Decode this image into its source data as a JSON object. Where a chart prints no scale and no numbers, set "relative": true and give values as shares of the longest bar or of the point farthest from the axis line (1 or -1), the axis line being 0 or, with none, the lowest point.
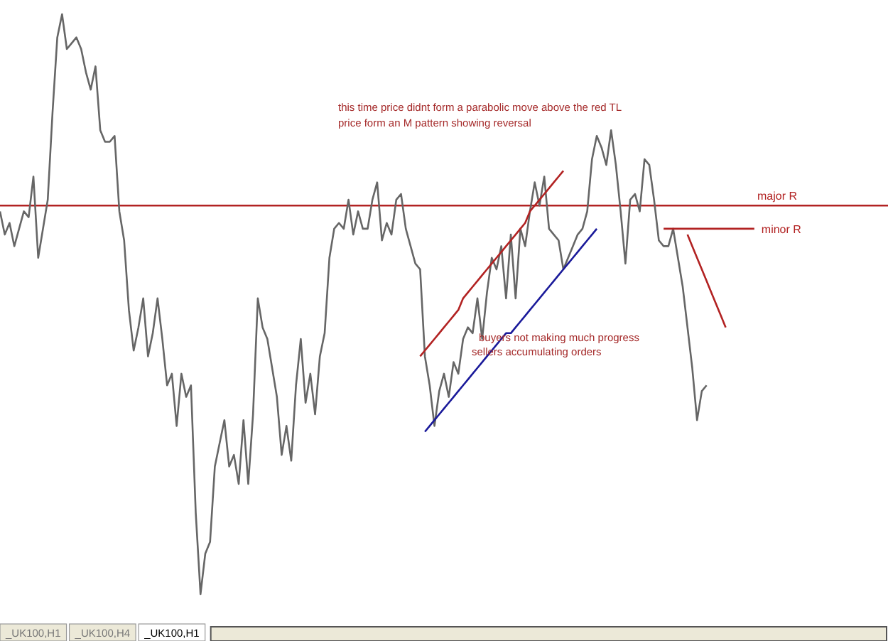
{
  "chart_data": {
    "type": "line",
    "relative": true,
    "tick_labels": false,
    "marker": "none",
    "line_style": "solid",
    "categories": [
      null,
      null,
      null,
      null,
      null,
      null,
      null,
      null,
      null,
      null,
      null,
      null,
      null,
      null,
      null,
      null,
      null,
      null,
      null,
      null,
      null,
      null,
      null,
      null,
      null,
      null,
      null,
      null,
      null,
      null,
      null,
      null,
      null,
      null,
      null,
      null,
      null,
      null,
      null,
      null,
      null,
      null,
      null,
      null,
      null,
      null,
      null,
      null,
      null,
      null,
      null,
      null,
      null,
      null,
      null,
      null,
      null,
      null,
      null,
      null,
      null,
      null,
      null,
      null,
      null,
      null,
      null,
      null,
      null,
      null,
      null,
      null,
      null,
      null,
      null,
      null,
      null,
      null,
      null,
      null,
      null,
      null,
      null,
      null,
      null,
      null,
      null,
      null,
      null,
      null,
      null,
      null,
      null,
      null,
      null,
      null,
      null,
      null,
      null,
      null,
      null,
      null,
      null,
      null,
      null,
      null,
      null,
      null,
      null,
      null,
      null,
      null,
      null,
      null,
      null,
      null,
      null,
      null,
      null,
      null,
      null,
      null,
      null,
      null,
      null,
      null,
      null,
      null,
      null,
      null,
      null,
      null,
      null,
      null,
      null,
      null,
      null,
      null,
      null,
      null,
      null,
      null,
      null,
      null,
      null,
      null,
      null,
      null,
      null,
      null,
      null,
      null,
      null,
      null,
      null,
      null,
      null,
      null,
      null,
      null,
      null,
      null,
      null,
      null,
      null,
      null,
      null,
      null,
      null,
      null,
      null,
      null,
      null,
      null,
      null,
      null,
      null,
      null,
      null,
      null,
      null,
      null,
      null,
      null,
      null,
      null,
      null
    ],
    "series": [
      {
        "color": "#666666",
        "values": [
          0.66,
          0.62,
          0.64,
          0.6,
          0.63,
          0.66,
          0.65,
          0.72,
          0.58,
          0.63,
          0.68,
          0.83,
          0.96,
          1,
          0.94,
          0.95,
          0.96,
          0.94,
          0.9,
          0.87,
          0.91,
          0.8,
          0.78,
          0.78,
          0.79,
          0.66,
          0.61,
          0.49,
          0.42,
          0.46,
          0.51,
          0.41,
          0.45,
          0.51,
          0.44,
          0.36,
          0.38,
          0.29,
          0.38,
          0.34,
          0.36,
          0.14,
          0,
          0.07,
          0.09,
          0.22,
          0.26,
          0.3,
          0.22,
          0.24,
          0.19,
          0.3,
          0.19,
          0.31,
          0.51,
          0.46,
          0.44,
          0.39,
          0.34,
          0.24,
          0.29,
          0.23,
          0.36,
          0.44,
          0.33,
          0.38,
          0.31,
          0.41,
          0.45,
          0.58,
          0.63,
          0.64,
          0.63,
          0.68,
          0.62,
          0.66,
          0.63,
          0.63,
          0.68,
          0.71,
          0.61,
          0.64,
          0.62,
          0.68,
          0.69,
          0.63,
          0.6,
          0.57,
          0.56,
          0.41,
          0.36,
          0.29,
          0.35,
          0.38,
          0.34,
          0.4,
          0.38,
          0.44,
          0.46,
          0.45,
          0.51,
          0.44,
          0.52,
          0.58,
          0.56,
          0.6,
          0.51,
          0.62,
          0.51,
          0.63,
          0.6,
          0.66,
          0.71,
          0.67,
          0.72,
          0.63,
          0.62,
          0.61,
          0.56,
          0.58,
          0.6,
          0.62,
          0.63,
          0.66,
          0.75,
          0.79,
          0.77,
          0.74,
          0.8,
          0.74,
          0.66,
          0.57,
          0.68,
          0.69,
          0.66,
          0.75,
          0.74,
          0.68,
          0.61,
          0.6,
          0.6,
          0.63,
          0.58,
          0.53,
          0.46,
          0.39,
          0.3,
          0.35,
          0.36,
          null,
          null,
          null,
          null,
          null,
          null,
          null,
          null,
          null,
          null,
          null,
          null,
          null,
          null,
          null,
          null,
          null,
          null,
          null,
          null,
          null,
          null,
          null,
          null,
          null,
          null,
          null,
          null,
          null,
          null,
          null,
          null,
          null,
          null,
          null,
          null,
          null,
          null
        ]
      },
      {
        "color": "#b22222",
        "values": [
          null,
          null,
          null,
          null,
          null,
          null,
          null,
          null,
          null,
          null,
          null,
          null,
          null,
          null,
          null,
          null,
          null,
          null,
          null,
          null,
          null,
          null,
          null,
          null,
          null,
          null,
          null,
          null,
          null,
          null,
          null,
          null,
          null,
          null,
          null,
          null,
          null,
          null,
          null,
          null,
          null,
          null,
          null,
          null,
          null,
          null,
          null,
          null,
          null,
          null,
          null,
          null,
          null,
          null,
          null,
          null,
          null,
          null,
          null,
          null,
          null,
          null,
          null,
          null,
          null,
          null,
          null,
          null,
          null,
          null,
          null,
          null,
          null,
          null,
          null,
          null,
          null,
          null,
          null,
          null,
          null,
          null,
          null,
          null,
          null,
          null,
          null,
          null,
          0.41,
          0.42,
          0.43,
          0.44,
          0.45,
          0.46,
          0.47,
          0.48,
          0.49,
          0.51,
          0.52,
          0.53,
          0.54,
          0.55,
          0.56,
          0.57,
          0.58,
          0.59,
          0.6,
          0.61,
          0.62,
          0.63,
          0.64,
          0.66,
          0.67,
          0.68,
          0.69,
          0.7,
          0.71,
          0.72,
          0.73,
          null,
          null,
          null,
          null,
          null,
          null,
          null,
          null,
          null,
          null,
          null,
          null,
          null,
          null,
          null,
          null,
          null,
          null,
          null,
          null,
          null,
          null,
          null,
          null,
          null,
          null,
          null,
          null,
          null,
          null,
          null,
          null,
          null,
          null,
          null,
          null,
          null,
          null,
          null,
          null,
          null,
          null,
          null,
          null,
          null,
          null,
          null,
          null,
          null,
          null,
          null,
          null,
          null,
          null,
          null,
          null,
          null,
          null,
          null,
          null,
          null,
          null,
          null,
          null,
          null,
          null,
          null,
          null
        ]
      },
      {
        "color": "#1a1a9a",
        "values": [
          null,
          null,
          null,
          null,
          null,
          null,
          null,
          null,
          null,
          null,
          null,
          null,
          null,
          null,
          null,
          null,
          null,
          null,
          null,
          null,
          null,
          null,
          null,
          null,
          null,
          null,
          null,
          null,
          null,
          null,
          null,
          null,
          null,
          null,
          null,
          null,
          null,
          null,
          null,
          null,
          null,
          null,
          null,
          null,
          null,
          null,
          null,
          null,
          null,
          null,
          null,
          null,
          null,
          null,
          null,
          null,
          null,
          null,
          null,
          null,
          null,
          null,
          null,
          null,
          null,
          null,
          null,
          null,
          null,
          null,
          null,
          null,
          null,
          null,
          null,
          null,
          null,
          null,
          null,
          null,
          null,
          null,
          null,
          null,
          null,
          null,
          null,
          null,
          null,
          0.28,
          0.29,
          0.3,
          0.31,
          0.32,
          0.33,
          0.34,
          0.35,
          0.36,
          0.37,
          0.38,
          0.39,
          0.4,
          0.41,
          0.42,
          0.43,
          0.44,
          0.45,
          0.45,
          0.46,
          0.47,
          0.48,
          0.49,
          0.5,
          0.51,
          0.52,
          0.53,
          0.54,
          0.55,
          0.56,
          0.57,
          0.58,
          0.59,
          0.6,
          0.61,
          0.62,
          0.63,
          null,
          null,
          null,
          null,
          null,
          null,
          null,
          null,
          null,
          null,
          null,
          null,
          null,
          null,
          null,
          null,
          null,
          null,
          null,
          null,
          null,
          null,
          null,
          null,
          null,
          null,
          null,
          null,
          null,
          null,
          null,
          null,
          null,
          null,
          null,
          null,
          null,
          null,
          null,
          null,
          null,
          null,
          null,
          null,
          null,
          null,
          null,
          null,
          null,
          null,
          null,
          null,
          null,
          null,
          null,
          null,
          null,
          null,
          null,
          null,
          null
        ]
      },
      {
        "color": "#b22222",
        "values": [
          null,
          null,
          null,
          null,
          null,
          null,
          null,
          null,
          null,
          null,
          null,
          null,
          null,
          null,
          null,
          null,
          null,
          null,
          null,
          null,
          null,
          null,
          null,
          null,
          null,
          null,
          null,
          null,
          null,
          null,
          null,
          null,
          null,
          null,
          null,
          null,
          null,
          null,
          null,
          null,
          null,
          null,
          null,
          null,
          null,
          null,
          null,
          null,
          null,
          null,
          null,
          null,
          null,
          null,
          null,
          null,
          null,
          null,
          null,
          null,
          null,
          null,
          null,
          null,
          null,
          null,
          null,
          null,
          null,
          null,
          null,
          null,
          null,
          null,
          null,
          null,
          null,
          null,
          null,
          null,
          null,
          null,
          null,
          null,
          null,
          null,
          null,
          null,
          null,
          null,
          null,
          null,
          null,
          null,
          null,
          null,
          null,
          null,
          null,
          null,
          null,
          null,
          null,
          null,
          null,
          null,
          null,
          null,
          null,
          null,
          null,
          null,
          null,
          null,
          null,
          null,
          null,
          null,
          null,
          null,
          null,
          null,
          null,
          null,
          null,
          null,
          null,
          null,
          null,
          null,
          null,
          null,
          null,
          null,
          null,
          null,
          null,
          null,
          null,
          null,
          null,
          null,
          null,
          null,
          0.62,
          0.6,
          0.58,
          0.56,
          0.54,
          0.52,
          0.5,
          0.48,
          0.46,
          null,
          null,
          null,
          null,
          null,
          null,
          null,
          null,
          null,
          null,
          null,
          null,
          null,
          null,
          null,
          null,
          null,
          null,
          null,
          null,
          null,
          null,
          null,
          null,
          null,
          null,
          null,
          null,
          null,
          null,
          null,
          null,
          null,
          null
        ]
      },
      {
        "name": "minor R",
        "color": "#b22222",
        "values": [
          null,
          null,
          null,
          null,
          null,
          null,
          null,
          null,
          null,
          null,
          null,
          null,
          null,
          null,
          null,
          null,
          null,
          null,
          null,
          null,
          null,
          null,
          null,
          null,
          null,
          null,
          null,
          null,
          null,
          null,
          null,
          null,
          null,
          null,
          null,
          null,
          null,
          null,
          null,
          null,
          null,
          null,
          null,
          null,
          null,
          null,
          null,
          null,
          null,
          null,
          null,
          null,
          null,
          null,
          null,
          null,
          null,
          null,
          null,
          null,
          null,
          null,
          null,
          null,
          null,
          null,
          null,
          null,
          null,
          null,
          null,
          null,
          null,
          null,
          null,
          null,
          null,
          null,
          null,
          null,
          null,
          null,
          null,
          null,
          null,
          null,
          null,
          null,
          null,
          null,
          null,
          null,
          null,
          null,
          null,
          null,
          null,
          null,
          null,
          null,
          null,
          null,
          null,
          null,
          null,
          null,
          null,
          null,
          null,
          null,
          null,
          null,
          null,
          null,
          null,
          null,
          null,
          null,
          null,
          null,
          null,
          null,
          null,
          null,
          null,
          null,
          null,
          null,
          null,
          null,
          null,
          null,
          null,
          null,
          null,
          null,
          null,
          null,
          null,
          0.63,
          0.63,
          0.63,
          0.63,
          0.63,
          0.63,
          0.63,
          0.63,
          0.63,
          0.63,
          0.63,
          0.63,
          0.63,
          0.63,
          0.63,
          0.63,
          0.63,
          0.63,
          0.63,
          0.63,
          null,
          null,
          null,
          null,
          null,
          null,
          null,
          null,
          null,
          null,
          null,
          null,
          null,
          null,
          null,
          null,
          null,
          null,
          null,
          null,
          null,
          null,
          null,
          null,
          null,
          null,
          null,
          null
        ]
      }
    ],
    "ref_lines": [
      {
        "axis": "y",
        "value": 0.67,
        "label": "major R",
        "color": "#b22222"
      }
    ],
    "annotations": [
      "this time price didnt form a parabolic move above the red TL",
      "price form an M pattern showing reversal",
      "buyers not making much progress",
      "sellers accumulating orders",
      "_UK100,H1",
      "_UK100,H4",
      "_UK100,H1"
    ]
  }
}
